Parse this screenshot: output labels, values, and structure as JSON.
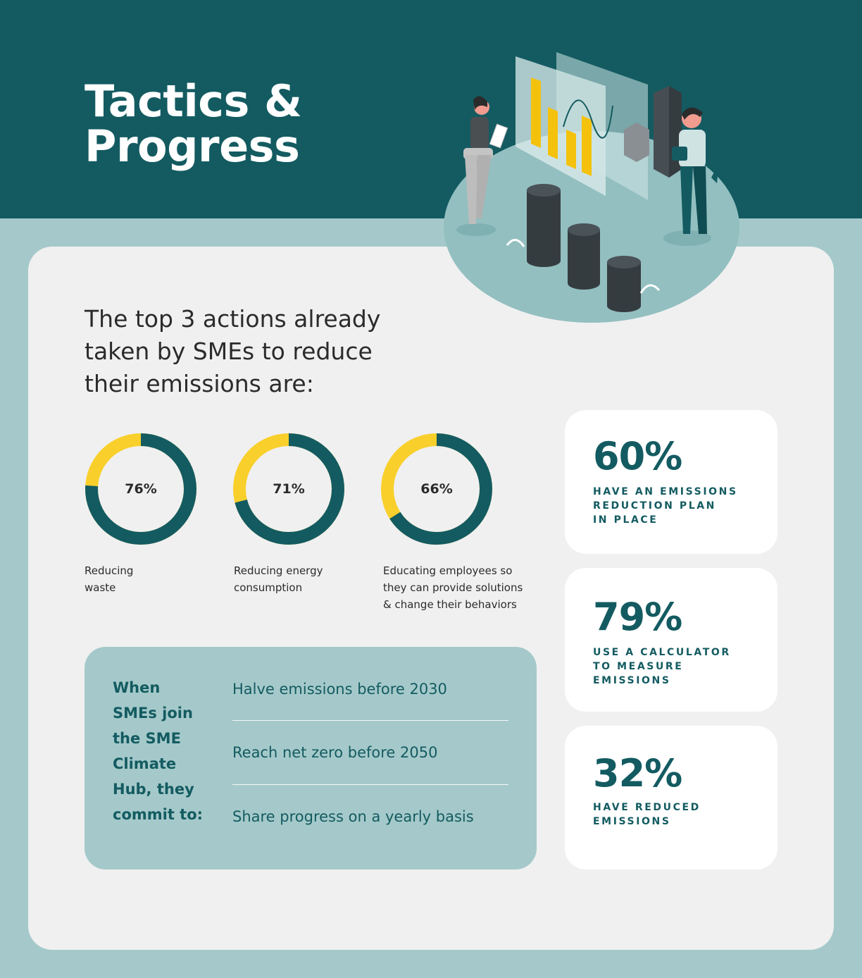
{
  "title": {
    "line1": "Tactics &",
    "line2": "Progress"
  },
  "intro": "The top 3 actions already taken by SMEs to reduce their emissions are:",
  "colors": {
    "teal": "#135b61",
    "yellow": "#f9cf2b",
    "light_teal": "#a5c9ca",
    "card": "#f0f0f0"
  },
  "actions": [
    {
      "percent": 76,
      "label": "76%",
      "caption_lines": [
        "Reducing",
        "waste"
      ]
    },
    {
      "percent": 71,
      "label": "71%",
      "caption_lines": [
        "Reducing energy",
        "consumption"
      ]
    },
    {
      "percent": 66,
      "label": "66%",
      "caption_lines": [
        "Educating employees so",
        "they can provide solutions",
        "& change their behaviors"
      ]
    }
  ],
  "commitments": {
    "lead_lines": [
      "When",
      "SMEs join",
      "the SME",
      "Climate",
      "Hub, they",
      "commit to:"
    ],
    "items": [
      "Halve emissions before 2030",
      "Reach net zero before 2050",
      "Share progress on a yearly basis"
    ]
  },
  "stats": [
    {
      "value": "60%",
      "desc_lines": [
        "Have an emissions",
        "reduction plan",
        "in place"
      ]
    },
    {
      "value": "79%",
      "desc_lines": [
        "Use a calculator",
        "to measure",
        "emissions"
      ]
    },
    {
      "value": "32%",
      "desc_lines": [
        "Have reduced",
        "emissions"
      ]
    }
  ]
}
